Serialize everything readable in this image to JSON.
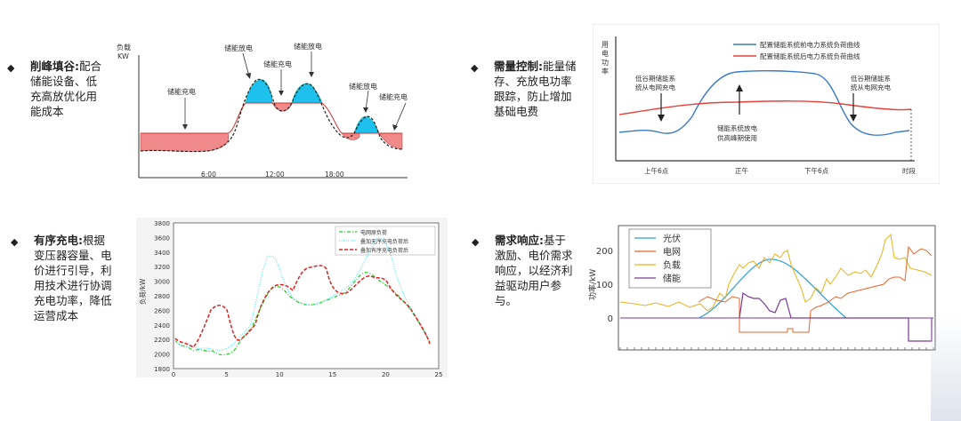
{
  "bullets": [
    {
      "title": "削峰填谷:",
      "text": "配合储能设备、低充高放优化用能成本"
    },
    {
      "title": "需量控制:",
      "text": "能量储存、充放电功率跟踪，防止增加基础电费"
    },
    {
      "title": "有序充电:",
      "text": "根据变压器容量、电价进行引导，利用技术进行协调充电功率，降低运营成本"
    },
    {
      "title": "需求响应:",
      "text": "基于激励、电价需求响应，以经济利益驱动用户参与。"
    }
  ],
  "chart1": {
    "ylabel_1": "负载",
    "ylabel_2": "KW",
    "annotations": [
      "储能充电",
      "储能放电",
      "储能充电",
      "储能放电",
      "储能放电",
      "储能充电"
    ],
    "xticks": [
      "6:00",
      "12:00",
      "18:00"
    ],
    "colors": {
      "charge": "#f08a8a",
      "discharge": "#1ec0ee"
    }
  },
  "chart2": {
    "ylabel": [
      "用",
      "电",
      "功",
      "率"
    ],
    "legend": [
      "配置储能系统前电力系统负荷曲线",
      "配置储能系统后电力系统负荷曲线"
    ],
    "ann_left": [
      "低谷期储能系",
      "统从电网充电"
    ],
    "ann_mid": [
      "储能系统放电",
      "供高峰期使用"
    ],
    "ann_right": [
      "低谷期储能系",
      "统从电网充电"
    ],
    "xticks": [
      "上午6点",
      "正午",
      "下午6点",
      "时段"
    ],
    "colors": {
      "before": "#3a78c8",
      "after": "#e8403a"
    }
  },
  "chart3": {
    "ylabel": "负荷/kW",
    "yticks": [
      "1800",
      "2000",
      "2200",
      "2400",
      "2600",
      "2800",
      "3000",
      "3200",
      "3400",
      "3600",
      "3800"
    ],
    "xticks": [
      "0",
      "5",
      "10",
      "15",
      "20",
      "25"
    ],
    "legend": [
      "电网原负荷",
      "叠加无序充电负荷后",
      "叠加有序充电负荷后"
    ],
    "colors": {
      "base": "#22cc22",
      "disordered": "#55e8ee",
      "ordered": "#dd2222"
    }
  },
  "chart4": {
    "ylabel": "功率/kW",
    "yticks": [
      "0",
      "100",
      "200"
    ],
    "legend": [
      "光伏",
      "电网",
      "负载",
      "储能"
    ],
    "colors": {
      "pv": "#2a9fd8",
      "grid": "#e8642a",
      "load": "#e8b21a",
      "storage": "#7a3a9a"
    }
  }
}
